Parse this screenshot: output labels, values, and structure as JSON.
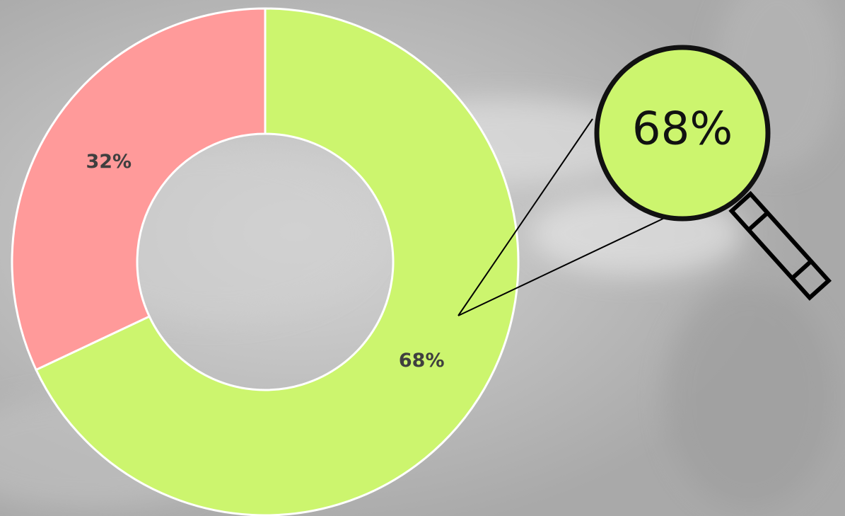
{
  "chart_data": {
    "type": "donut",
    "categories": [
      null,
      null
    ],
    "values": [
      68,
      32
    ],
    "value_labels": [
      "68%",
      "32%"
    ],
    "colors": [
      "#ccf56e",
      "#ff9a9a"
    ],
    "callout_index": 0
  }
}
